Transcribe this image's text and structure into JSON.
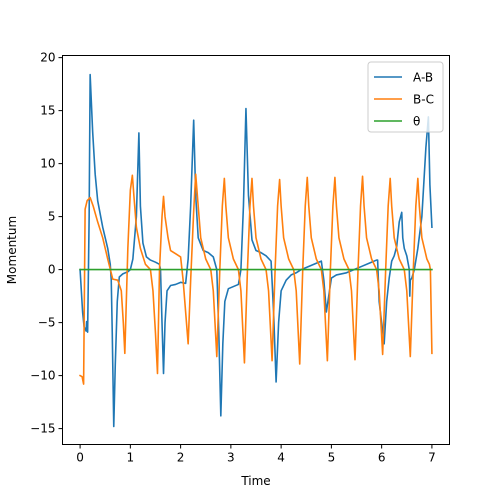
{
  "chart_data": {
    "type": "line",
    "title": "",
    "xlabel": "Time",
    "ylabel": "Momentum",
    "xlim": [
      -0.35,
      7.35
    ],
    "ylim": [
      -16.5,
      20.2
    ],
    "xticks": [
      0,
      1,
      2,
      3,
      4,
      5,
      6,
      7
    ],
    "yticks": [
      -15,
      -10,
      -5,
      0,
      5,
      10,
      15,
      20
    ],
    "grid": false,
    "legend": "top-right",
    "series": [
      {
        "name": "A-B",
        "color": "#1f77b4",
        "points": [
          [
            0.0,
            0.0
          ],
          [
            0.05,
            -4.0
          ],
          [
            0.08,
            -5.4
          ],
          [
            0.12,
            -5.8
          ],
          [
            0.13,
            -4.9
          ],
          [
            0.15,
            -5.9
          ],
          [
            0.18,
            5.0
          ],
          [
            0.2,
            18.4
          ],
          [
            0.25,
            13.0
          ],
          [
            0.3,
            9.0
          ],
          [
            0.35,
            6.5
          ],
          [
            0.45,
            4.0
          ],
          [
            0.55,
            2.0
          ],
          [
            0.6,
            0.5
          ],
          [
            0.62,
            -1.0
          ],
          [
            0.64,
            -6.0
          ],
          [
            0.67,
            -14.8
          ],
          [
            0.7,
            -9.0
          ],
          [
            0.74,
            -3.0
          ],
          [
            0.78,
            -0.7
          ],
          [
            0.85,
            -0.4
          ],
          [
            0.95,
            -0.2
          ],
          [
            1.0,
            0.0
          ],
          [
            1.05,
            1.0
          ],
          [
            1.12,
            5.0
          ],
          [
            1.17,
            12.9
          ],
          [
            1.2,
            6.0
          ],
          [
            1.25,
            2.5
          ],
          [
            1.32,
            1.2
          ],
          [
            1.4,
            0.9
          ],
          [
            1.5,
            0.7
          ],
          [
            1.58,
            0.5
          ],
          [
            1.6,
            0.0
          ],
          [
            1.63,
            -5.0
          ],
          [
            1.66,
            -9.8
          ],
          [
            1.69,
            -5.0
          ],
          [
            1.73,
            -2.0
          ],
          [
            1.8,
            -1.5
          ],
          [
            1.9,
            -1.4
          ],
          [
            2.0,
            -1.2
          ],
          [
            2.1,
            -1.3
          ],
          [
            2.15,
            1.0
          ],
          [
            2.2,
            6.0
          ],
          [
            2.26,
            14.1
          ],
          [
            2.3,
            7.0
          ],
          [
            2.35,
            3.0
          ],
          [
            2.45,
            1.8
          ],
          [
            2.55,
            1.6
          ],
          [
            2.65,
            1.2
          ],
          [
            2.72,
            0.0
          ],
          [
            2.76,
            -6.0
          ],
          [
            2.8,
            -13.8
          ],
          [
            2.84,
            -7.0
          ],
          [
            2.88,
            -3.0
          ],
          [
            2.95,
            -1.8
          ],
          [
            3.05,
            -1.6
          ],
          [
            3.15,
            -1.4
          ],
          [
            3.2,
            0.0
          ],
          [
            3.25,
            6.0
          ],
          [
            3.3,
            15.2
          ],
          [
            3.35,
            7.0
          ],
          [
            3.42,
            2.8
          ],
          [
            3.5,
            1.8
          ],
          [
            3.6,
            1.6
          ],
          [
            3.7,
            1.3
          ],
          [
            3.8,
            0.8
          ],
          [
            3.85,
            -4.0
          ],
          [
            3.9,
            -10.6
          ],
          [
            3.95,
            -5.0
          ],
          [
            4.0,
            -2.0
          ],
          [
            4.1,
            -1.0
          ],
          [
            4.2,
            -0.5
          ],
          [
            4.3,
            -0.3
          ],
          [
            4.4,
            0.0
          ],
          [
            4.5,
            0.2
          ],
          [
            4.6,
            0.4
          ],
          [
            4.7,
            0.6
          ],
          [
            4.8,
            0.8
          ],
          [
            4.85,
            -1.0
          ],
          [
            4.9,
            -4.0
          ],
          [
            5.0,
            -0.8
          ],
          [
            5.1,
            -0.5
          ],
          [
            5.3,
            -0.3
          ],
          [
            5.45,
            0.0
          ],
          [
            5.6,
            0.3
          ],
          [
            5.75,
            0.6
          ],
          [
            5.9,
            0.9
          ],
          [
            5.92,
            0.9
          ],
          [
            5.95,
            -3.0
          ],
          [
            6.05,
            -7.0
          ],
          [
            6.1,
            -3.0
          ],
          [
            6.15,
            -0.8
          ],
          [
            6.2,
            0.8
          ],
          [
            6.25,
            1.3
          ],
          [
            6.3,
            2.2
          ],
          [
            6.35,
            4.5
          ],
          [
            6.4,
            5.4
          ],
          [
            6.42,
            3.0
          ],
          [
            6.45,
            2.0
          ],
          [
            6.5,
            1.3
          ],
          [
            6.55,
            0.0
          ],
          [
            6.56,
            -2.5
          ],
          [
            6.57,
            -1.0
          ],
          [
            6.6,
            -0.8
          ],
          [
            6.65,
            0.0
          ],
          [
            6.72,
            2.0
          ],
          [
            6.8,
            5.0
          ],
          [
            6.88,
            11.5
          ],
          [
            6.93,
            14.4
          ],
          [
            6.96,
            8.0
          ],
          [
            7.0,
            4.0
          ]
        ]
      },
      {
        "name": "B-C",
        "color": "#ff7f0e",
        "points": [
          [
            0.0,
            -10.0
          ],
          [
            0.04,
            -10.1
          ],
          [
            0.07,
            -10.8
          ],
          [
            0.1,
            5.7
          ],
          [
            0.14,
            6.5
          ],
          [
            0.2,
            6.8
          ],
          [
            0.26,
            6.0
          ],
          [
            0.35,
            4.5
          ],
          [
            0.45,
            3.0
          ],
          [
            0.55,
            1.0
          ],
          [
            0.65,
            -0.9
          ],
          [
            0.75,
            -1.0
          ],
          [
            0.82,
            -2.0
          ],
          [
            0.86,
            -5.0
          ],
          [
            0.89,
            -7.9
          ],
          [
            0.95,
            2.0
          ],
          [
            1.0,
            7.5
          ],
          [
            1.04,
            8.9
          ],
          [
            1.07,
            7.0
          ],
          [
            1.12,
            4.0
          ],
          [
            1.2,
            2.0
          ],
          [
            1.3,
            0.5
          ],
          [
            1.4,
            0.0
          ],
          [
            1.45,
            -2.0
          ],
          [
            1.5,
            -6.0
          ],
          [
            1.54,
            -9.8
          ],
          [
            1.58,
            0.0
          ],
          [
            1.63,
            5.0
          ],
          [
            1.66,
            6.9
          ],
          [
            1.69,
            5.0
          ],
          [
            1.75,
            3.0
          ],
          [
            1.8,
            1.8
          ],
          [
            1.9,
            1.5
          ],
          [
            2.0,
            1.2
          ],
          [
            2.05,
            -1.0
          ],
          [
            2.1,
            -4.0
          ],
          [
            2.15,
            -7.0
          ],
          [
            2.2,
            -1.0
          ],
          [
            2.26,
            5.5
          ],
          [
            2.3,
            9.0
          ],
          [
            2.35,
            6.0
          ],
          [
            2.4,
            3.0
          ],
          [
            2.5,
            1.0
          ],
          [
            2.6,
            0.0
          ],
          [
            2.65,
            -2.0
          ],
          [
            2.72,
            -8.2
          ],
          [
            2.78,
            0.0
          ],
          [
            2.83,
            6.0
          ],
          [
            2.87,
            8.6
          ],
          [
            2.9,
            6.0
          ],
          [
            2.95,
            3.0
          ],
          [
            3.05,
            1.0
          ],
          [
            3.15,
            0.0
          ],
          [
            3.2,
            -2.0
          ],
          [
            3.27,
            -8.8
          ],
          [
            3.33,
            0.0
          ],
          [
            3.38,
            6.0
          ],
          [
            3.42,
            8.6
          ],
          [
            3.45,
            6.0
          ],
          [
            3.5,
            3.0
          ],
          [
            3.6,
            1.0
          ],
          [
            3.7,
            0.0
          ],
          [
            3.75,
            -2.0
          ],
          [
            3.82,
            -8.6
          ],
          [
            3.88,
            0.0
          ],
          [
            3.93,
            6.0
          ],
          [
            3.97,
            8.5
          ],
          [
            4.0,
            6.0
          ],
          [
            4.05,
            3.0
          ],
          [
            4.15,
            1.0
          ],
          [
            4.25,
            0.0
          ],
          [
            4.3,
            -2.0
          ],
          [
            4.37,
            -8.9
          ],
          [
            4.43,
            0.0
          ],
          [
            4.48,
            6.0
          ],
          [
            4.52,
            8.7
          ],
          [
            4.55,
            6.0
          ],
          [
            4.6,
            3.0
          ],
          [
            4.7,
            1.0
          ],
          [
            4.8,
            0.0
          ],
          [
            4.85,
            -2.0
          ],
          [
            4.92,
            -8.6
          ],
          [
            4.98,
            0.0
          ],
          [
            5.03,
            6.0
          ],
          [
            5.07,
            8.7
          ],
          [
            5.1,
            6.0
          ],
          [
            5.15,
            3.0
          ],
          [
            5.25,
            1.0
          ],
          [
            5.35,
            0.0
          ],
          [
            5.4,
            -2.0
          ],
          [
            5.47,
            -8.5
          ],
          [
            5.53,
            0.0
          ],
          [
            5.58,
            6.0
          ],
          [
            5.62,
            8.8
          ],
          [
            5.65,
            6.0
          ],
          [
            5.7,
            3.0
          ],
          [
            5.8,
            1.0
          ],
          [
            5.9,
            0.0
          ],
          [
            5.95,
            -2.0
          ],
          [
            6.02,
            -8.0
          ],
          [
            6.08,
            0.0
          ],
          [
            6.13,
            6.0
          ],
          [
            6.17,
            8.6
          ],
          [
            6.2,
            6.0
          ],
          [
            6.25,
            3.0
          ],
          [
            6.35,
            1.0
          ],
          [
            6.45,
            0.0
          ],
          [
            6.5,
            -2.0
          ],
          [
            6.57,
            -8.2
          ],
          [
            6.63,
            0.0
          ],
          [
            6.68,
            6.0
          ],
          [
            6.72,
            8.6
          ],
          [
            6.75,
            6.0
          ],
          [
            6.8,
            3.0
          ],
          [
            6.9,
            1.0
          ],
          [
            6.95,
            0.5
          ],
          [
            6.97,
            0.0
          ],
          [
            7.0,
            -7.9
          ]
        ]
      },
      {
        "name": "θ",
        "color": "#2ca02c",
        "points": [
          [
            0.0,
            0.0
          ],
          [
            7.0,
            0.0
          ]
        ]
      }
    ]
  }
}
